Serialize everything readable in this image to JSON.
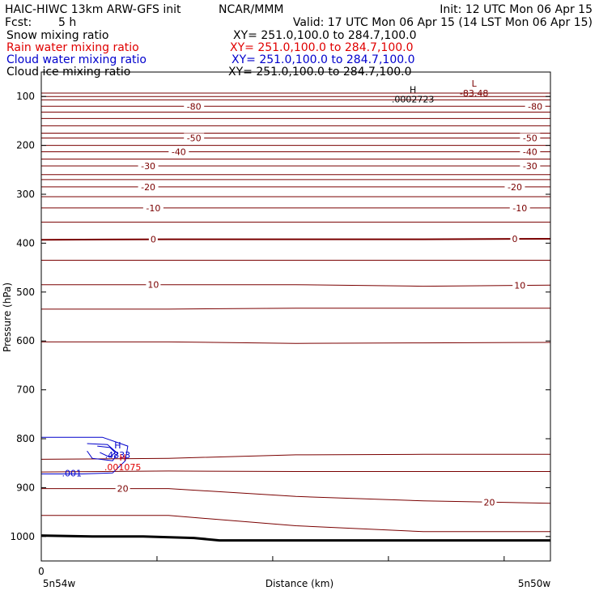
{
  "header": {
    "model": "HAIC-HIWC 13km ARW-GFS init",
    "org": "NCAR/MMM",
    "init": "Init: 12 UTC Mon 06 Apr 15",
    "fcst_label": "Fcst:",
    "fcst_value": "5 h",
    "valid": "Valid: 17 UTC Mon 06 Apr 15 (14 LST Mon 06 Apr 15)"
  },
  "fields": [
    {
      "name": "Snow mixing ratio",
      "xy": "XY= 251.0,100.0 to 284.7,100.0",
      "color": "#000000"
    },
    {
      "name": "Rain water mixing ratio",
      "xy": "XY= 251.0,100.0 to 284.7,100.0",
      "color": "#e00000"
    },
    {
      "name": "Cloud water mixing ratio",
      "xy": "XY= 251.0,100.0 to 284.7,100.0",
      "color": "#0000cc"
    },
    {
      "name": "Cloud ice mixing ratio",
      "xy": "XY= 251.0,100.0 to 284.7,100.0",
      "color": "#000000"
    }
  ],
  "colors": {
    "temperature": "#7a0000",
    "cloud_water": "#0000cc",
    "rain_water": "#e00000",
    "terrain": "#000000",
    "frame": "#000000"
  },
  "chart_data": {
    "type": "line",
    "xlabel": "Distance (km)",
    "ylabel": "Pressure (hPa)",
    "x_start_value": "0",
    "x_left_label": "5n54w",
    "x_right_label": "5n50w",
    "y_axis": {
      "scale": "linear",
      "inverted": true,
      "range": [
        1050,
        50
      ]
    },
    "y_ticks": [
      100,
      200,
      300,
      400,
      500,
      600,
      700,
      800,
      900,
      1000
    ],
    "x_minor_ticks": 4,
    "temperature_isotherms": [
      {
        "label": "-80",
        "p": [
          120,
          120,
          120,
          120,
          120
        ],
        "label_at": [
          0.3,
          0.97
        ]
      },
      {
        "label": "-50",
        "p": [
          185,
          185,
          185,
          185,
          185
        ],
        "label_at": [
          0.3,
          0.96
        ]
      },
      {
        "label": "-40",
        "p": [
          213,
          213,
          213,
          213,
          213
        ],
        "label_at": [
          0.27,
          0.96
        ]
      },
      {
        "label": "-30",
        "p": [
          242,
          242,
          242,
          242,
          242
        ],
        "label_at": [
          0.21,
          0.96
        ]
      },
      {
        "label": "-20",
        "p": [
          285,
          285,
          285,
          285,
          285
        ],
        "label_at": [
          0.21,
          0.93
        ]
      },
      {
        "label": "-10",
        "p": [
          328,
          328,
          328,
          328,
          328
        ],
        "label_at": [
          0.22,
          0.94
        ]
      },
      {
        "label": "0",
        "p": [
          393,
          392,
          392,
          392,
          391
        ],
        "label_at": [
          0.22,
          0.93
        ]
      },
      {
        "label": "10",
        "p": [
          485,
          485,
          485,
          488,
          486
        ],
        "label_at": [
          0.22,
          0.94
        ]
      },
      {
        "label": "20",
        "p": [
          842,
          840,
          833,
          832,
          832
        ]
      },
      {
        "label": "20",
        "p": [
          868,
          866,
          867,
          867,
          867
        ]
      },
      {
        "label": "20",
        "p": [
          902,
          902,
          918,
          927,
          932
        ],
        "label_at": [
          0.16,
          0.88
        ]
      },
      {
        "label": "20",
        "p": [
          957,
          957,
          978,
          990,
          990
        ]
      }
    ],
    "unlabeled_isotherms": [
      [
        93,
        93,
        93,
        93,
        93
      ],
      [
        100,
        100,
        100,
        100,
        100
      ],
      [
        107,
        107,
        107,
        107,
        107
      ],
      [
        132,
        132,
        132,
        132,
        132
      ],
      [
        145,
        145,
        145,
        145,
        145
      ],
      [
        160,
        160,
        160,
        160,
        160
      ],
      [
        175,
        175,
        175,
        175,
        175
      ],
      [
        200,
        200,
        200,
        200,
        200
      ],
      [
        228,
        228,
        228,
        228,
        228
      ],
      [
        260,
        260,
        260,
        260,
        260
      ],
      [
        270,
        270,
        270,
        270,
        270
      ],
      [
        305,
        305,
        305,
        305,
        305
      ],
      [
        357,
        357,
        357,
        357,
        357
      ],
      [
        435,
        435,
        435,
        435,
        435
      ],
      [
        535,
        535,
        533,
        533,
        533
      ],
      [
        602,
        602,
        605,
        604,
        603
      ]
    ],
    "isotherm_x": [
      0,
      0.25,
      0.5,
      0.75,
      1.0
    ],
    "terrain": {
      "x": [
        0,
        0.1,
        0.2,
        0.3,
        0.35,
        0.5,
        0.75,
        1.0
      ],
      "p": [
        998,
        1000,
        1000,
        1003,
        1008,
        1008,
        1008,
        1008
      ]
    },
    "cloud_water_contours": [
      {
        "label": ".001",
        "x": [
          0,
          0.12,
          0.17,
          0.165,
          0.14,
          0.08,
          0.0
        ],
        "p": [
          797,
          797,
          815,
          845,
          870,
          872,
          872
        ],
        "label_at": [
          0.06,
          870
        ]
      },
      {
        "x": [
          0.09,
          0.13,
          0.15,
          0.14,
          0.1,
          0.09
        ],
        "p": [
          810,
          812,
          830,
          845,
          840,
          825
        ]
      },
      {
        "x": [
          0.11,
          0.135,
          0.145,
          0.135,
          0.115
        ],
        "p": [
          815,
          818,
          828,
          838,
          828
        ]
      }
    ],
    "cloud_water_max": {
      "marker": "H",
      "value": ".4833",
      "x": 0.15,
      "p": 820
    },
    "rain_water_max": {
      "marker": "H",
      "value": ".001075",
      "x": 0.16,
      "p": 845
    },
    "temperature_min": {
      "marker": "L",
      "value": "-83.48",
      "x": 0.85,
      "p": 80
    },
    "snow_max": {
      "marker": "H",
      "value": ".0002723",
      "x": 0.73,
      "p": 92
    }
  }
}
